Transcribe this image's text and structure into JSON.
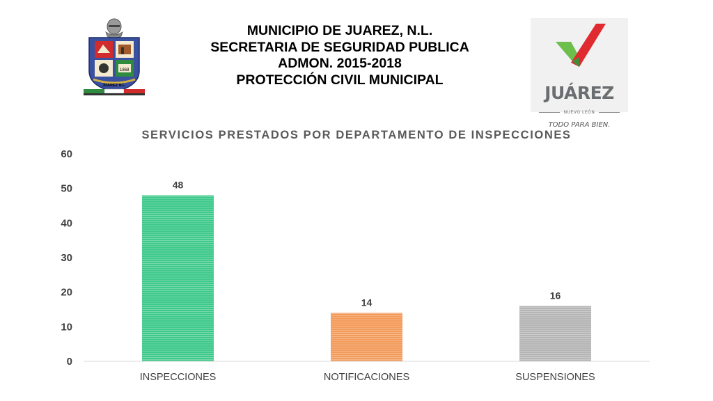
{
  "header": {
    "lines": [
      "MUNICIPIO DE JUAREZ, N.L.",
      "SECRETARIA DE SEGURIDAD PUBLICA",
      "ADMON. 2015-2018",
      "PROTECCIÓN CIVIL MUNICIPAL"
    ]
  },
  "crest": {
    "icon": "municipal-crest-icon",
    "band_text": "JUAREZ N.L.",
    "colors": {
      "blue": "#3a50a0",
      "red": "#d22b2b",
      "green": "#2e8b3f",
      "gold": "#d8b13a"
    }
  },
  "juarez_logo": {
    "icon": "juarez-check-logo-icon",
    "word": "JUÁREZ",
    "state": "NUEVO LEÓN",
    "slogan": "TODO PARA BIEN.",
    "colors": {
      "red": "#e02a2f",
      "green": "#6cbf4a",
      "gray": "#6b6e70"
    }
  },
  "chart_data": {
    "type": "bar",
    "title": "SERVICIOS PRESTADOS POR DEPARTAMENTO DE INSPECCIONES",
    "categories": [
      "INSPECCIONES",
      "NOTIFICACIONES",
      "SUSPENSIONES"
    ],
    "values": [
      48,
      14,
      16
    ],
    "colors": [
      "#3fc98a",
      "#f39b5b",
      "#b5b5b5"
    ],
    "ylim": [
      0,
      60
    ],
    "yticks": [
      0,
      10,
      20,
      30,
      40,
      50,
      60
    ],
    "grid": false,
    "legend": "none",
    "data_labels": true
  }
}
